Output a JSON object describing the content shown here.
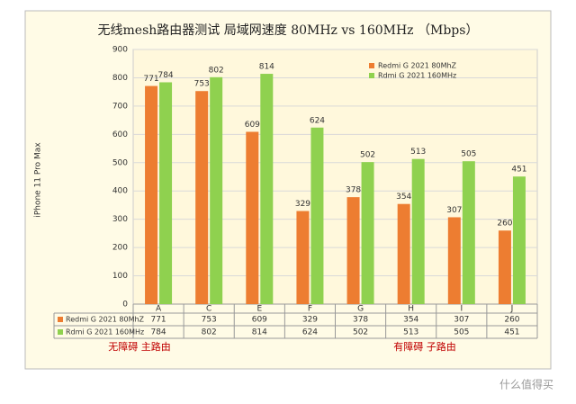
{
  "chart_data": {
    "type": "bar",
    "title": "无线mesh路由器测试 局域网速度 80MHz vs 160MHz （Mbps）",
    "y_label": "iPhone 11 Pro Max",
    "categories": [
      "A",
      "C",
      "E",
      "F",
      "G",
      "H",
      "I",
      "J"
    ],
    "series": [
      {
        "name": "Redmi G 2021 80MhZ",
        "color": "#ed7d31",
        "values": [
          771,
          753,
          609,
          329,
          378,
          354,
          307,
          260
        ]
      },
      {
        "name": "Rdmi G 2021 160MHz",
        "color": "#8fd14f",
        "values": [
          784,
          802,
          814,
          624,
          502,
          513,
          505,
          451
        ]
      }
    ],
    "ylim": [
      0,
      900
    ],
    "yticks": [
      0,
      100,
      200,
      300,
      400,
      500,
      600,
      700,
      800,
      900
    ],
    "grid": true,
    "legend": "upper right",
    "annotations": [
      "无障碍 主路由",
      "有障碍 子路由"
    ],
    "watermark": "什么值得买"
  }
}
